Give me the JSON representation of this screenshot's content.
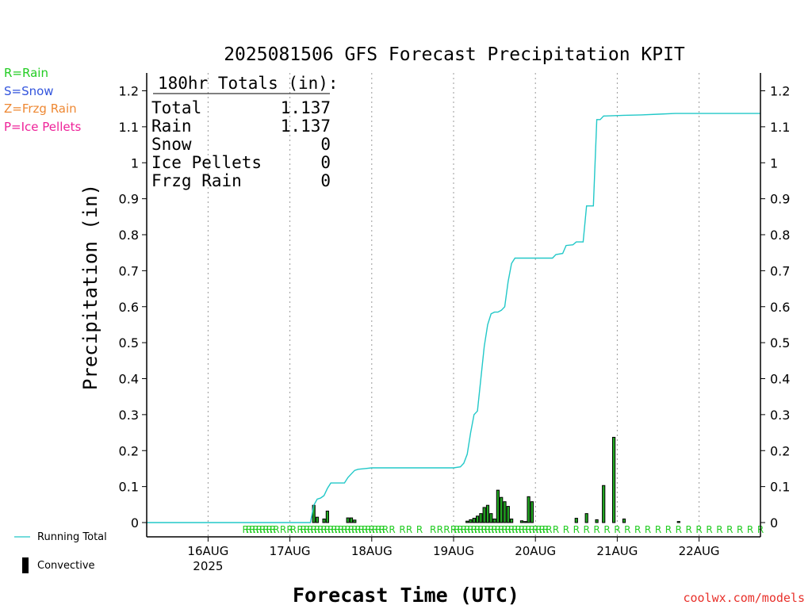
{
  "title": "2025081506 GFS Forecast Precipitation KPIT",
  "key": [
    {
      "label": "R=Rain",
      "color": "#22cc22"
    },
    {
      "label": "S=Snow",
      "color": "#3355dd"
    },
    {
      "label": "Z=Frzg Rain",
      "color": "#ee8833"
    },
    {
      "label": "P=Ice Pellets",
      "color": "#ee2299"
    }
  ],
  "totals": {
    "header": "180hr Totals (in):",
    "rows": [
      {
        "label": "Total",
        "value": "1.137"
      },
      {
        "label": "Rain",
        "value": "1.137"
      },
      {
        "label": "Snow",
        "value": "0"
      },
      {
        "label": "Ice Pellets",
        "value": "0"
      },
      {
        "label": "Frzg Rain",
        "value": "0"
      }
    ]
  },
  "legend": {
    "running_total": "Running Total",
    "convective": "Convective"
  },
  "footer": "coolwx.com/models",
  "colors": {
    "running_total": "#22c8c8",
    "convective": "#000000",
    "bar_fill": "#22aa22",
    "rain_marker": "#22cc22",
    "grid": "#999999"
  },
  "chart_data": {
    "type": "bar",
    "title": "2025081506 GFS Forecast Precipitation KPIT",
    "xlabel": "Forecast Time (UTC)",
    "ylabel": "Precipitation (in)",
    "ylim": [
      0,
      1.25
    ],
    "yticks": [
      0,
      0.1,
      0.2,
      0.3,
      0.4,
      0.5,
      0.6,
      0.7,
      0.8,
      0.9,
      1,
      1.1,
      1.2
    ],
    "ytick_labels": [
      "0",
      "0.1",
      "0.2",
      "0.3",
      "0.4",
      "0.5",
      "0.6",
      "0.7",
      "0.8",
      "0.9",
      "1",
      "1.1",
      "1.2"
    ],
    "xlim_hours": [
      0,
      180
    ],
    "grid": "vertical dotted at 00Z",
    "xticks": [
      {
        "hour": 18,
        "label": "16AUG",
        "sublabel": "2025"
      },
      {
        "hour": 42,
        "label": "17AUG",
        "sublabel": ""
      },
      {
        "hour": 66,
        "label": "18AUG",
        "sublabel": ""
      },
      {
        "hour": 90,
        "label": "19AUG",
        "sublabel": ""
      },
      {
        "hour": 114,
        "label": "20AUG",
        "sublabel": ""
      },
      {
        "hour": 138,
        "label": "21AUG",
        "sublabel": ""
      },
      {
        "hour": 162,
        "label": "22AUG",
        "sublabel": ""
      }
    ],
    "series": [
      {
        "name": "Running Total",
        "type": "line",
        "points": [
          [
            0,
            0
          ],
          [
            42,
            0
          ],
          [
            48,
            0
          ],
          [
            49,
            0.048
          ],
          [
            50,
            0.065
          ],
          [
            51,
            0.068
          ],
          [
            52,
            0.075
          ],
          [
            53,
            0.095
          ],
          [
            54,
            0.11
          ],
          [
            56,
            0.11
          ],
          [
            58,
            0.11
          ],
          [
            59,
            0.125
          ],
          [
            60,
            0.135
          ],
          [
            61,
            0.145
          ],
          [
            62,
            0.148
          ],
          [
            64,
            0.15
          ],
          [
            66,
            0.152
          ],
          [
            75,
            0.152
          ],
          [
            85,
            0.152
          ],
          [
            90,
            0.152
          ],
          [
            92,
            0.155
          ],
          [
            93,
            0.165
          ],
          [
            94,
            0.19
          ],
          [
            95,
            0.25
          ],
          [
            96,
            0.3
          ],
          [
            97,
            0.31
          ],
          [
            98,
            0.4
          ],
          [
            99,
            0.49
          ],
          [
            100,
            0.55
          ],
          [
            101,
            0.58
          ],
          [
            102,
            0.585
          ],
          [
            103,
            0.585
          ],
          [
            104,
            0.59
          ],
          [
            105,
            0.6
          ],
          [
            106,
            0.67
          ],
          [
            107,
            0.72
          ],
          [
            108,
            0.735
          ],
          [
            110,
            0.735
          ],
          [
            114,
            0.735
          ],
          [
            119,
            0.735
          ],
          [
            120,
            0.745
          ],
          [
            122,
            0.748
          ],
          [
            123,
            0.77
          ],
          [
            125,
            0.772
          ],
          [
            126,
            0.78
          ],
          [
            128,
            0.78
          ],
          [
            129,
            0.88
          ],
          [
            131,
            0.88
          ],
          [
            132,
            1.12
          ],
          [
            133,
            1.12
          ],
          [
            134,
            1.13
          ],
          [
            140,
            1.132
          ],
          [
            145,
            1.133
          ],
          [
            150,
            1.135
          ],
          [
            155,
            1.137
          ],
          [
            180,
            1.137
          ]
        ]
      },
      {
        "name": "Convective",
        "type": "bar",
        "bar_width_hours": 0.75,
        "bars": [
          [
            49,
            0.048
          ],
          [
            50,
            0.015
          ],
          [
            52,
            0.01
          ],
          [
            53,
            0.032
          ],
          [
            59,
            0.013
          ],
          [
            60,
            0.013
          ],
          [
            61,
            0.007
          ],
          [
            94,
            0.004
          ],
          [
            95,
            0.008
          ],
          [
            96,
            0.012
          ],
          [
            97,
            0.018
          ],
          [
            98,
            0.025
          ],
          [
            99,
            0.042
          ],
          [
            100,
            0.048
          ],
          [
            101,
            0.025
          ],
          [
            102,
            0.01
          ],
          [
            103,
            0.09
          ],
          [
            104,
            0.07
          ],
          [
            105,
            0.058
          ],
          [
            106,
            0.045
          ],
          [
            107,
            0.01
          ],
          [
            110,
            0.005
          ],
          [
            111,
            0.003
          ],
          [
            112,
            0.072
          ],
          [
            113,
            0.058
          ],
          [
            126,
            0.012
          ],
          [
            129,
            0.025
          ],
          [
            132,
            0.008
          ],
          [
            134,
            0.103
          ],
          [
            137,
            0.237
          ],
          [
            140,
            0.01
          ],
          [
            156,
            0.003
          ]
        ]
      }
    ],
    "ptype_markers": {
      "label": "R",
      "hours": [
        29,
        30,
        31,
        32,
        33,
        34,
        35,
        36,
        37,
        38,
        40,
        42,
        43,
        45,
        46,
        47,
        48,
        49,
        50,
        51,
        52,
        53,
        54,
        55,
        56,
        57,
        58,
        59,
        60,
        61,
        62,
        63,
        64,
        65,
        66,
        67,
        68,
        69,
        70,
        72,
        75,
        77,
        80,
        84,
        86,
        88,
        90,
        91,
        92,
        93,
        94,
        95,
        96,
        97,
        98,
        99,
        100,
        101,
        102,
        103,
        104,
        105,
        106,
        107,
        108,
        109,
        110,
        111,
        112,
        113,
        114,
        115,
        116,
        117,
        118,
        120,
        123,
        126,
        129,
        132,
        135,
        138,
        141,
        144,
        147,
        150,
        153,
        156,
        159,
        162,
        165,
        168,
        171,
        174,
        177,
        180
      ]
    }
  }
}
